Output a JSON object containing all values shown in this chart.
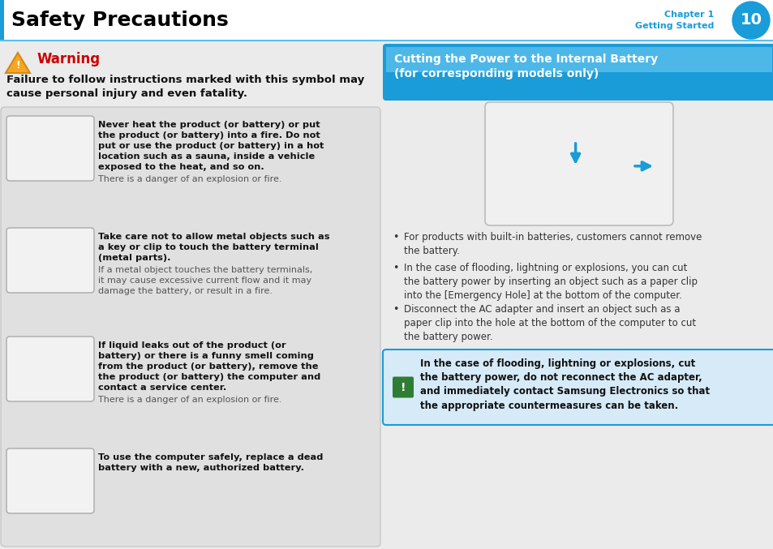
{
  "page_bg": "#ebebeb",
  "header_bg": "#ffffff",
  "header_title": "Safety Precautions",
  "header_title_color": "#000000",
  "header_chapter": "Chapter 1",
  "header_subtitle": "Getting Started",
  "header_chapter_color": "#1a9cd8",
  "page_num": "10",
  "page_num_bg": "#1a9cd8",
  "page_num_color": "#ffffff",
  "warning_color": "#cc0000",
  "warning_text": "Warning",
  "warning_desc": "Failure to follow instructions marked with this symbol may\ncause personal injury and even fatality.",
  "left_box_bg": "#e0e0e0",
  "items_bold": [
    "Never heat the product (or battery) or put\nthe product (or battery) into a fire. Do not\nput or use the product (or battery) in a hot\nlocation such as a sauna, inside a vehicle\nexposed to the heat, and so on.",
    "Take care not to allow metal objects such as\na key or clip to touch the battery terminal\n(metal parts).",
    "If liquid leaks out of the product (or\nbattery) or there is a funny smell coming\nfrom the product (or battery), remove the\nthe product (or battery) the computer and\ncontact a service center.",
    "To use the computer safely, replace a dead\nbattery with a new, authorized battery."
  ],
  "items_normal": [
    "There is a danger of an explosion or fire.",
    "If a metal object touches the battery terminals,\nit may cause excessive current flow and it may\ndamage the battery, or result in a fire.",
    "There is a danger of an explosion or fire.",
    ""
  ],
  "right_header_bg_top": "#4db8e8",
  "right_header_bg_bot": "#1a9cd8",
  "right_header_text": "Cutting the Power to the Internal Battery\n(for corresponding models only)",
  "right_header_color": "#ffffff",
  "bullet_points": [
    "For products with built-in batteries, customers cannot remove\nthe battery.",
    "In the case of flooding, lightning or explosions, you can cut\nthe battery power by inserting an object such as a paper clip\ninto the [Emergency Hole] at the bottom of the computer.",
    "Disconnect the AC adapter and insert an object such as a\npaper clip into the hole at the bottom of the computer to cut\nthe battery power."
  ],
  "note_bg": "#d6eaf8",
  "note_border": "#1a9cd8",
  "note_icon_bg": "#2e7d32",
  "note_text": "In the case of flooding, lightning or explosions, cut\nthe battery power, do not reconnect the AC adapter,\nand immediately contact Samsung Electronics so that\nthe appropriate countermeasures can be taken.",
  "divider_color": "#b0c4d8",
  "header_bottom_line": "#5bc0eb",
  "text_color": "#333333"
}
